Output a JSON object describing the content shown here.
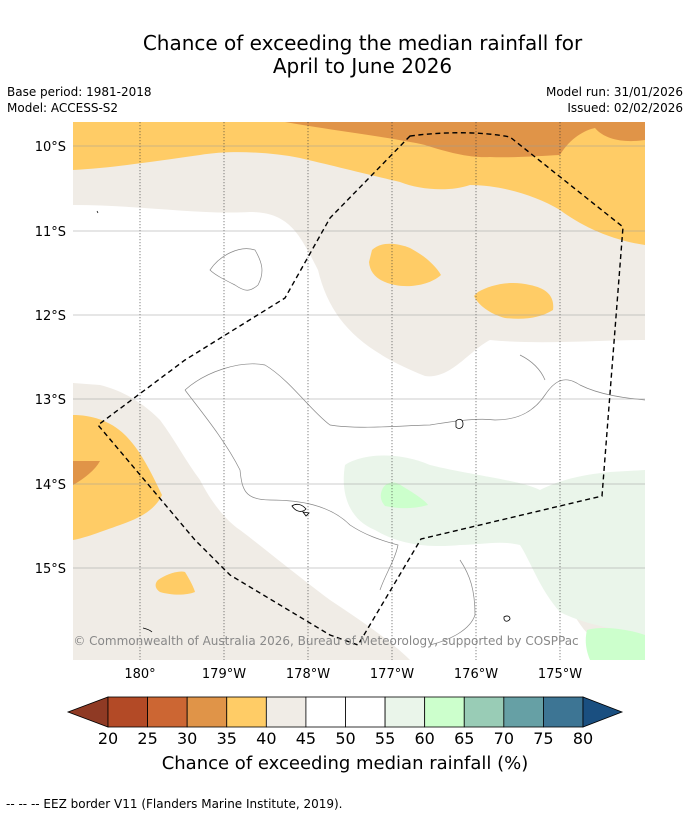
{
  "header": {
    "title_line1": "Chance of exceeding the median rainfall for",
    "title_line2": "April to June 2026",
    "base_period": "Base period: 1981-2018",
    "model": "Model: ACCESS-S2",
    "model_run": "Model run: 31/01/2026",
    "issued": "Issued: 02/02/2026"
  },
  "map": {
    "lat_labels": [
      "10°S",
      "11°S",
      "12°S",
      "13°S",
      "14°S",
      "15°S"
    ],
    "lon_labels": [
      "180°",
      "179°W",
      "178°W",
      "177°W",
      "176°W",
      "175°W"
    ],
    "copyright": "© Commonwealth of Australia 2026, Bureau of Meteorology, supported by COSPPac"
  },
  "colorbar": {
    "ticks": [
      "20",
      "25",
      "30",
      "35",
      "40",
      "45",
      "50",
      "55",
      "60",
      "65",
      "70",
      "75",
      "80"
    ],
    "colors": [
      "#b34a26",
      "#cc6633",
      "#e09448",
      "#ffcc66",
      "#f0ece6",
      "#ffffff",
      "#ffffff",
      "#eaf5ea",
      "#ccffcc",
      "#99ccb6",
      "#66a0a5",
      "#3d7594"
    ],
    "low_color": "#8f3a24",
    "high_color": "#1a4f80",
    "label": "Chance of exceeding median rainfall (%)"
  },
  "footer": {
    "legend_note": "--  --  -- EEZ border V11 (Flanders Marine Institute, 2019)."
  }
}
